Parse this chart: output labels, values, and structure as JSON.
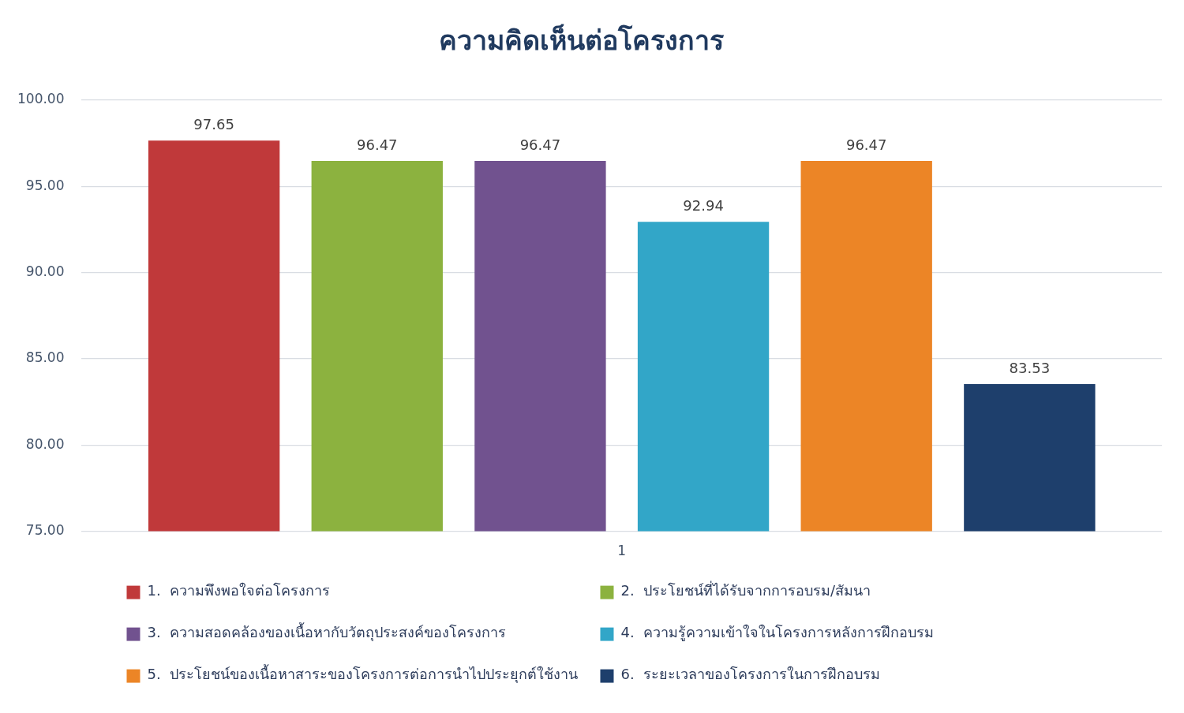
{
  "chart_data": {
    "type": "bar",
    "title": "ความคิดเห็นต่อโครงการ",
    "categories": [
      "1"
    ],
    "series": [
      {
        "name": "1.  ความพึงพอใจต่อโครงการ",
        "color": "#c0393a",
        "values": [
          97.65
        ]
      },
      {
        "name": "2.  ประโยชน์ที่ได้รับจากการอบรม/สัมนา",
        "color": "#8cb23f",
        "values": [
          96.47
        ]
      },
      {
        "name": "3.  ความสอดคล้องของเนื้อหากับวัตถุประสงค์ของโครงการ",
        "color": "#71528f",
        "values": [
          96.47
        ]
      },
      {
        "name": "4.  ความรู้ความเข้าใจในโครงการหลังการฝึกอบรม",
        "color": "#32a6c8",
        "values": [
          92.94
        ]
      },
      {
        "name": "5.  ประโยชน์ของเนื้อหาสาระของโครงการต่อการนำไปประยุกต์ใช้งาน",
        "color": "#ec8526",
        "values": [
          96.47
        ]
      },
      {
        "name": "6.  ระยะเวลาของโครงการในการฝึกอบรม",
        "color": "#1e3f6c",
        "values": [
          83.53
        ]
      }
    ],
    "ylim": [
      75,
      100
    ],
    "yticks": [
      {
        "value": 75,
        "label": "75.00"
      },
      {
        "value": 80,
        "label": "80.00"
      },
      {
        "value": 85,
        "label": "85.00"
      },
      {
        "value": 90,
        "label": "90.00"
      },
      {
        "value": 95,
        "label": "95.00"
      },
      {
        "value": 100,
        "label": "100.00"
      }
    ],
    "grid": "y",
    "legend": "bottom",
    "data_labels": true
  }
}
